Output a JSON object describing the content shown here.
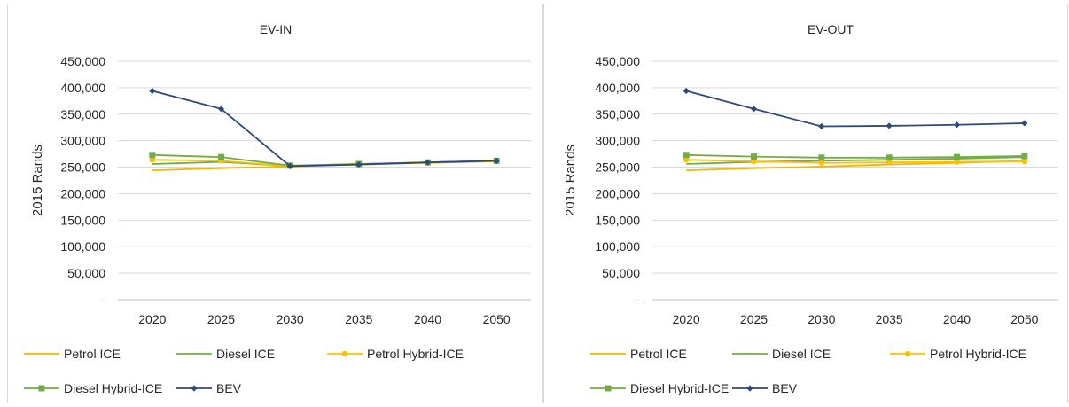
{
  "charts": [
    {
      "title": "EV-IN",
      "chart_data": {
        "type": "line",
        "title": "EV-IN",
        "xlabel": "",
        "ylabel": "2015 Rands",
        "categories": [
          "2020",
          "2025",
          "2030",
          "2035",
          "2040",
          "2050"
        ],
        "ylim": [
          0,
          450000
        ],
        "yticks": [
          0,
          50000,
          100000,
          150000,
          200000,
          250000,
          300000,
          350000,
          400000,
          450000
        ],
        "ytick_labels": [
          "-",
          "50,000",
          "100,000",
          "150,000",
          "200,000",
          "250,000",
          "300,000",
          "350,000",
          "400,000",
          "450,000"
        ],
        "grid": true,
        "legend": "bottom",
        "series": [
          {
            "name": "Petrol ICE",
            "color": "#f2b600",
            "marker": "none",
            "values": [
              244000,
              248000,
              251000,
              255000,
              258000,
              261000
            ]
          },
          {
            "name": "Diesel ICE",
            "color": "#70ad47",
            "marker": "none",
            "values": [
              256000,
              260000,
              252000,
              256000,
              259000,
              262000
            ]
          },
          {
            "name": "Petrol Hybrid-ICE",
            "color": "#ffc000",
            "marker": "circle",
            "values": [
              264000,
              262000,
              252000,
              256000,
              259000,
              262000
            ]
          },
          {
            "name": "Diesel Hybrid-ICE",
            "color": "#70ad47",
            "marker": "square",
            "values": [
              273000,
              269000,
              253000,
              256000,
              259000,
              262000
            ]
          },
          {
            "name": "BEV",
            "color": "#2f4a7a",
            "marker": "diamond",
            "values": [
              394000,
              360000,
              252000,
              255000,
              259000,
              262000
            ]
          }
        ]
      }
    },
    {
      "title": "EV-OUT",
      "chart_data": {
        "type": "line",
        "title": "EV-OUT",
        "xlabel": "",
        "ylabel": "2015 Rands",
        "categories": [
          "2020",
          "2025",
          "2030",
          "2035",
          "2040",
          "2050"
        ],
        "ylim": [
          0,
          450000
        ],
        "yticks": [
          0,
          50000,
          100000,
          150000,
          200000,
          250000,
          300000,
          350000,
          400000,
          450000
        ],
        "ytick_labels": [
          "-",
          "50,000",
          "100,000",
          "150,000",
          "200,000",
          "250,000",
          "300,000",
          "350,000",
          "400,000",
          "450,000"
        ],
        "grid": true,
        "legend": "bottom",
        "series": [
          {
            "name": "Petrol ICE",
            "color": "#f2b600",
            "marker": "none",
            "values": [
              244000,
              248000,
              251000,
              255000,
              258000,
              262000
            ]
          },
          {
            "name": "Diesel ICE",
            "color": "#70ad47",
            "marker": "none",
            "values": [
              256000,
              260000,
              262000,
              264000,
              266000,
              269000
            ]
          },
          {
            "name": "Petrol Hybrid-ICE",
            "color": "#ffc000",
            "marker": "circle",
            "values": [
              264000,
              261000,
              258000,
              259000,
              260000,
              261000
            ]
          },
          {
            "name": "Diesel Hybrid-ICE",
            "color": "#70ad47",
            "marker": "square",
            "values": [
              273000,
              270000,
              268000,
              268000,
              269000,
              271000
            ]
          },
          {
            "name": "BEV",
            "color": "#2f4a7a",
            "marker": "diamond",
            "values": [
              394000,
              360000,
              327000,
              328000,
              330000,
              333000
            ]
          }
        ]
      }
    }
  ]
}
